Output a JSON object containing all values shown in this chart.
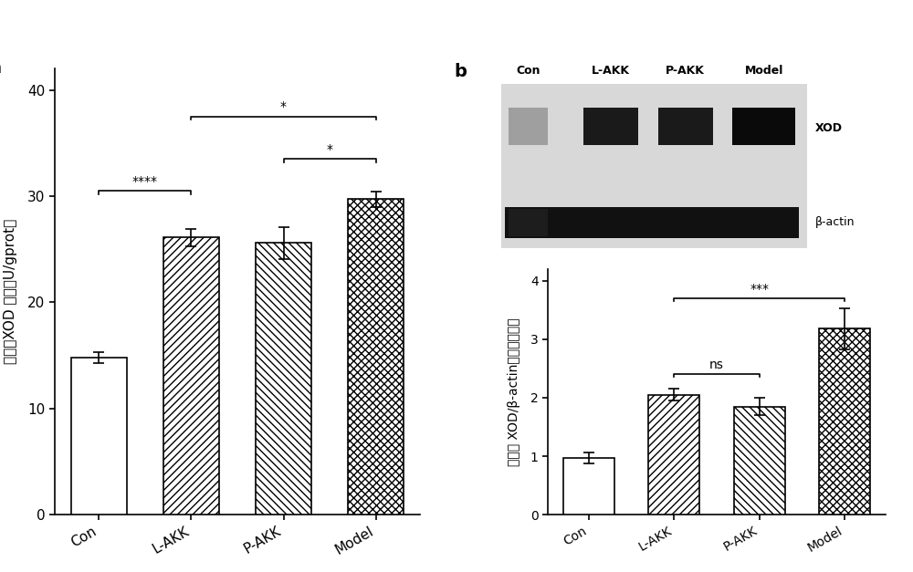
{
  "panel_a": {
    "categories": [
      "Con",
      "L-AKK",
      "P-AKK",
      "Model"
    ],
    "values": [
      14.8,
      26.1,
      25.6,
      29.7
    ],
    "errors": [
      0.5,
      0.8,
      1.5,
      0.7
    ],
    "ylabel": "肝脏中XOD 活性（U/gprot）",
    "ylim": [
      0,
      42
    ],
    "yticks": [
      0,
      10,
      20,
      30,
      40
    ],
    "hatch_patterns": [
      "",
      "////",
      "////",
      "xxxx"
    ],
    "bar_colors": [
      "white",
      "white",
      "white",
      "white"
    ],
    "bar_edgecolors": [
      "black",
      "black",
      "black",
      "black"
    ],
    "label": "a",
    "significance": [
      {
        "from": 0,
        "to": 1,
        "y": 30.5,
        "text": "****"
      },
      {
        "from": 2,
        "to": 3,
        "y": 33.5,
        "text": "*"
      },
      {
        "from": 1,
        "to": 3,
        "y": 37.5,
        "text": "*"
      }
    ]
  },
  "panel_b": {
    "categories": [
      "Con",
      "L-AKK",
      "P-AKK",
      "Model"
    ],
    "values": [
      0.97,
      2.05,
      1.85,
      3.18
    ],
    "errors": [
      0.1,
      0.1,
      0.15,
      0.35
    ],
    "ylabel": "肝脏中 XOD/β-actin的相对表达量",
    "ylim": [
      0,
      4.2
    ],
    "yticks": [
      0,
      1,
      2,
      3,
      4
    ],
    "hatch_patterns": [
      "",
      "////",
      "////",
      "xxxx"
    ],
    "bar_colors": [
      "white",
      "white",
      "white",
      "white"
    ],
    "bar_edgecolors": [
      "black",
      "black",
      "black",
      "black"
    ],
    "label": "b",
    "significance": [
      {
        "from": 1,
        "to": 2,
        "y": 2.4,
        "text": "ns"
      },
      {
        "from": 1,
        "to": 3,
        "y": 3.7,
        "text": "***"
      }
    ],
    "western_labels": [
      "Con",
      "L-AKK",
      "P-AKK",
      "Model"
    ],
    "band_labels": [
      "XOD",
      "β-actin"
    ]
  }
}
